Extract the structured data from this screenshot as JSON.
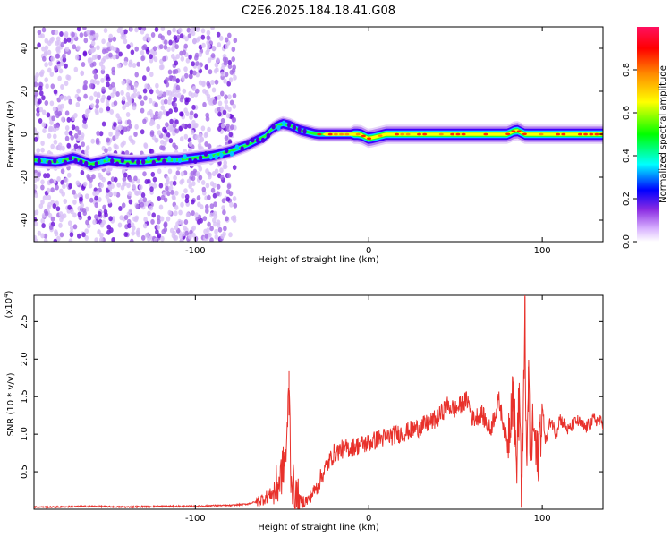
{
  "figure_title": "C2E6.2025.184.18.41.G08",
  "chart_data": [
    {
      "type": "heatmap",
      "title": "C2E6.2025.184.18.41.G08",
      "xlabel": "Height of straight line (km)",
      "ylabel": "Frequency (Hz)",
      "xlim": [
        -193,
        135
      ],
      "ylim": [
        -50,
        50
      ],
      "xticks": [
        -100,
        0,
        100
      ],
      "yticks": [
        40,
        20,
        0,
        -20,
        -40
      ],
      "colorbar": {
        "label": "Normalized spectral amplitude",
        "range": [
          0,
          1
        ],
        "ticks": [
          0.0,
          0.2,
          0.4,
          0.6,
          0.8
        ],
        "colors": [
          "#ffffff",
          "#8a2be2",
          "#0000ff",
          "#00ffff",
          "#00ff00",
          "#ffff00",
          "#ff8c00",
          "#ff0000",
          "#ff1493"
        ]
      },
      "ridge": {
        "x": [
          -193,
          -180,
          -170,
          -160,
          -150,
          -140,
          -130,
          -120,
          -110,
          -100,
          -90,
          -80,
          -70,
          -60,
          -55,
          -50,
          -45,
          -40,
          -35,
          -30,
          -25,
          -20,
          -15,
          -10,
          -5,
          0,
          10,
          20,
          40,
          60,
          70,
          80,
          85,
          90,
          100,
          110,
          120,
          135
        ],
        "y": [
          -12,
          -13,
          -11,
          -14,
          -12,
          -13,
          -13,
          -12,
          -12,
          -11,
          -10,
          -8,
          -5,
          -1,
          3,
          5,
          4,
          2,
          1,
          0,
          0,
          0,
          0,
          0,
          0,
          -2,
          0,
          0,
          0,
          0,
          0,
          0,
          2,
          0,
          0,
          0,
          0,
          0
        ]
      },
      "noise_region_x": [
        -193,
        -85
      ]
    },
    {
      "type": "line",
      "xlabel": "Height of straight line (km)",
      "ylabel": "SNR (10 * v/v)",
      "multiplier": "(x10^4)",
      "multiplier_base": "(x10",
      "multiplier_exp": "4",
      "multiplier_close": ")",
      "xlim": [
        -193,
        135
      ],
      "ylim": [
        0,
        2.85
      ],
      "xticks": [
        -100,
        0,
        100
      ],
      "yticks": [
        0.5,
        1.0,
        1.5,
        2.0,
        2.5
      ],
      "ytick_labels": [
        "0.5",
        "1.0",
        "1.5",
        "2.0",
        "2.5"
      ],
      "color": "#e8312b",
      "series": [
        {
          "x": [
            -193,
            -180,
            -160,
            -140,
            -120,
            -100,
            -90,
            -80,
            -70,
            -65,
            -60,
            -55,
            -52,
            -50,
            -48,
            -47,
            -46,
            -45,
            -44,
            -43,
            -42,
            -40,
            -35,
            -30,
            -25,
            -20,
            -15,
            -10,
            -5,
            0,
            5,
            10,
            15,
            20,
            25,
            30,
            35,
            40,
            45,
            50,
            55,
            57,
            60,
            65,
            70,
            75,
            80,
            83,
            85,
            87,
            88,
            89,
            90,
            91,
            92,
            93,
            95,
            97,
            100,
            102,
            105,
            108,
            110,
            115,
            120,
            125,
            130,
            135
          ],
          "y": [
            0.03,
            0.03,
            0.04,
            0.03,
            0.04,
            0.04,
            0.05,
            0.05,
            0.07,
            0.1,
            0.15,
            0.22,
            0.35,
            0.5,
            0.7,
            0.95,
            1.85,
            0.5,
            0.35,
            0.25,
            0.15,
            0.1,
            0.12,
            0.3,
            0.55,
            0.75,
            0.8,
            0.82,
            0.86,
            0.88,
            0.93,
            0.96,
            0.99,
            1.02,
            1.06,
            1.1,
            1.15,
            1.22,
            1.38,
            1.33,
            1.42,
            1.46,
            1.2,
            1.28,
            1.05,
            1.45,
            0.85,
            1.7,
            0.6,
            1.55,
            0.2,
            0.9,
            2.83,
            0.15,
            1.9,
            0.8,
            1.1,
            0.6,
            1.35,
            0.9,
            1.2,
            1.0,
            1.22,
            1.05,
            1.18,
            1.08,
            1.2,
            1.15
          ]
        }
      ]
    }
  ]
}
